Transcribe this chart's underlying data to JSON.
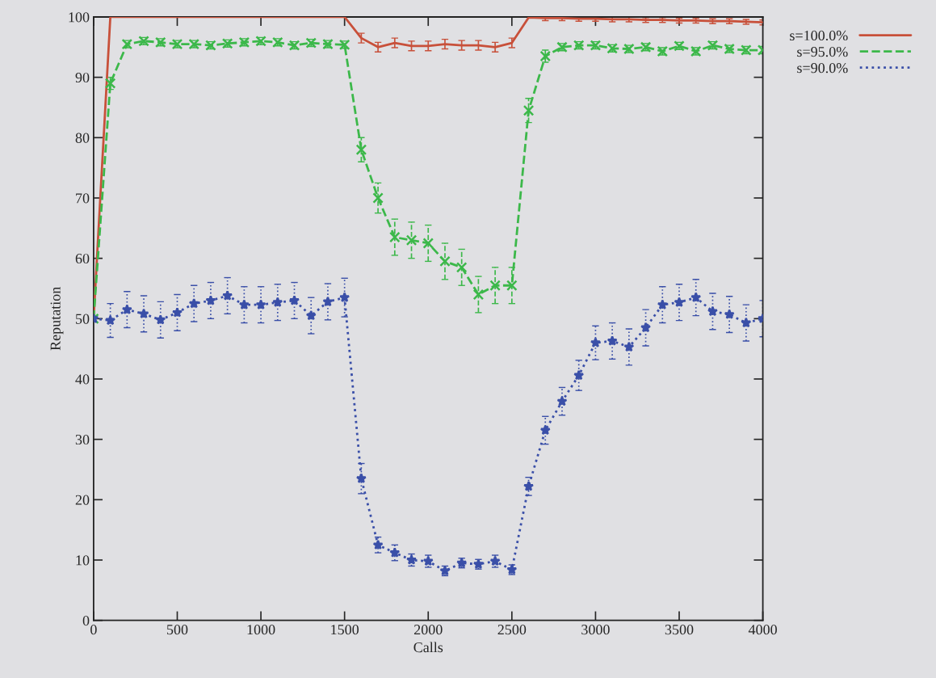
{
  "chart_data": {
    "type": "line",
    "xlabel": "Calls",
    "ylabel": "Reputation",
    "x": [
      0,
      100,
      200,
      300,
      400,
      500,
      600,
      700,
      800,
      900,
      1000,
      1100,
      1200,
      1300,
      1400,
      1500,
      1600,
      1700,
      1800,
      1900,
      2000,
      2100,
      2200,
      2300,
      2400,
      2500,
      2600,
      2700,
      2800,
      2900,
      3000,
      3100,
      3200,
      3300,
      3400,
      3500,
      3600,
      3700,
      3800,
      3900,
      4000
    ],
    "series": [
      {
        "name": "s=100.0%",
        "color": "#c8503a",
        "line_style": "solid",
        "marker": "none",
        "values": [
          50,
          100,
          100,
          100,
          100,
          100,
          100,
          100,
          100,
          100,
          100,
          100,
          100,
          100,
          100,
          100,
          96.5,
          95,
          95.7,
          95.2,
          95.2,
          95.5,
          95.3,
          95.3,
          95,
          95.7,
          99.9,
          99.8,
          99.8,
          99.7,
          99.7,
          99.6,
          99.6,
          99.5,
          99.5,
          99.4,
          99.4,
          99.3,
          99.3,
          99.2,
          99.1
        ],
        "errors": [
          0,
          null,
          null,
          null,
          null,
          null,
          null,
          null,
          null,
          null,
          null,
          null,
          null,
          null,
          null,
          null,
          0.8,
          0.8,
          0.8,
          0.8,
          0.8,
          0.8,
          0.8,
          0.8,
          0.8,
          0.8,
          null,
          0.4,
          0.4,
          0.4,
          0.4,
          0.4,
          0.4,
          0.4,
          0.4,
          0.4,
          0.4,
          0.4,
          0.4,
          0.4,
          0.4
        ]
      },
      {
        "name": "s=95.0%",
        "color": "#3cb84a",
        "line_style": "dashed",
        "marker": "cross",
        "values": [
          50,
          89,
          95.5,
          96,
          95.8,
          95.5,
          95.5,
          95.3,
          95.6,
          95.8,
          96,
          95.8,
          95.3,
          95.7,
          95.5,
          95.4,
          78,
          70,
          63.5,
          63,
          62.5,
          59.5,
          58.5,
          54,
          55.5,
          55.5,
          84.5,
          93.5,
          95,
          95.3,
          95.3,
          94.8,
          94.7,
          95,
          94.3,
          95.2,
          94.3,
          95.3,
          94.7,
          94.5,
          94.5
        ],
        "errors": [
          0,
          1,
          0.6,
          0.6,
          0.6,
          0.6,
          0.6,
          0.6,
          0.6,
          0.6,
          0.6,
          0.6,
          0.6,
          0.6,
          0.6,
          0.6,
          2,
          2.5,
          3,
          3,
          3,
          3,
          3,
          3,
          3,
          3,
          2,
          1,
          0.6,
          0.6,
          0.6,
          0.6,
          0.6,
          0.6,
          0.6,
          0.6,
          0.6,
          0.6,
          0.6,
          0.6,
          0.6
        ]
      },
      {
        "name": "s=90.0%",
        "color": "#3a4fa8",
        "line_style": "dotted",
        "marker": "star",
        "values": [
          50,
          49.7,
          51.5,
          50.8,
          49.8,
          51,
          52.5,
          53,
          53.8,
          52.3,
          52.3,
          52.7,
          53,
          50.5,
          52.8,
          53.5,
          23.5,
          12.5,
          11.2,
          10,
          9.8,
          8.2,
          9.5,
          9.3,
          9.8,
          8.4,
          22.2,
          31.5,
          36.3,
          40.6,
          46,
          46.3,
          45.3,
          48.5,
          52.3,
          52.7,
          53.5,
          51.2,
          50.7,
          49.3,
          50
        ],
        "errors": [
          0,
          2.8,
          3,
          3,
          3,
          3,
          3,
          3,
          3,
          3,
          3,
          3,
          3,
          3,
          3,
          3.2,
          2.5,
          1.3,
          1.3,
          1,
          1,
          0.8,
          0.8,
          0.8,
          1,
          0.8,
          1.5,
          2.3,
          2.3,
          2.5,
          2.8,
          3,
          3,
          3,
          3,
          3,
          3,
          3,
          3,
          3,
          3
        ]
      }
    ],
    "xlim": [
      0,
      4000
    ],
    "xticks": [
      0,
      500,
      1000,
      1500,
      2000,
      2500,
      3000,
      3500,
      4000
    ],
    "ylim": [
      0,
      100
    ],
    "yticks": [
      0,
      10,
      20,
      30,
      40,
      50,
      60,
      70,
      80,
      90,
      100
    ],
    "grid": false,
    "legend": "top right"
  }
}
